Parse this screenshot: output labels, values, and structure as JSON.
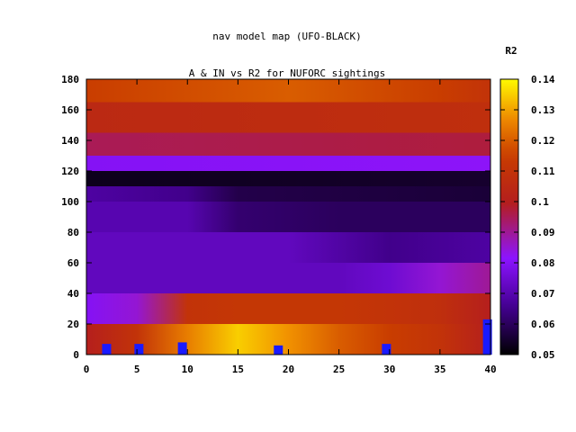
{
  "chart_data": {
    "type": "heatmap",
    "title_lines": [
      "nav model map (UFO-BLACK)",
      "A & IN vs R2 for NUFORC sightings"
    ],
    "colorbar_label": "R2",
    "xlim": [
      0,
      40
    ],
    "ylim": [
      0,
      180
    ],
    "x_ticks": [
      "0",
      "5",
      "10",
      "15",
      "20",
      "25",
      "30",
      "35",
      "40"
    ],
    "y_ticks": [
      "0",
      "20",
      "40",
      "60",
      "80",
      "100",
      "120",
      "140",
      "160",
      "180"
    ],
    "colorbar_range": [
      0.05,
      0.14
    ],
    "colorbar_ticks": [
      "0.05",
      "0.06",
      "0.07",
      "0.08",
      "0.09",
      "0.1",
      "0.11",
      "0.12",
      "0.13",
      "0.14"
    ],
    "colormap": "black-purple-red-orange-yellow (gnuplot)",
    "heatmap_bands": [
      {
        "y_from": 0,
        "y_to": 20,
        "x_profile": [
          [
            0,
            0.1
          ],
          [
            5,
            0.11
          ],
          [
            10,
            0.125
          ],
          [
            15,
            0.135
          ],
          [
            20,
            0.128
          ],
          [
            25,
            0.12
          ],
          [
            30,
            0.115
          ],
          [
            35,
            0.11
          ],
          [
            40,
            0.1
          ]
        ]
      },
      {
        "y_from": 20,
        "y_to": 40,
        "x_profile": [
          [
            0,
            0.08
          ],
          [
            5,
            0.085
          ],
          [
            10,
            0.11
          ],
          [
            15,
            0.112
          ],
          [
            20,
            0.112
          ],
          [
            25,
            0.112
          ],
          [
            30,
            0.11
          ],
          [
            35,
            0.108
          ],
          [
            40,
            0.1
          ]
        ]
      },
      {
        "y_from": 40,
        "y_to": 60,
        "x_profile": [
          [
            0,
            0.072
          ],
          [
            10,
            0.072
          ],
          [
            20,
            0.072
          ],
          [
            25,
            0.072
          ],
          [
            30,
            0.075
          ],
          [
            35,
            0.085
          ],
          [
            40,
            0.09
          ]
        ]
      },
      {
        "y_from": 60,
        "y_to": 80,
        "x_profile": [
          [
            0,
            0.072
          ],
          [
            10,
            0.072
          ],
          [
            20,
            0.072
          ],
          [
            30,
            0.065
          ],
          [
            40,
            0.068
          ]
        ]
      },
      {
        "y_from": 80,
        "y_to": 100,
        "x_profile": [
          [
            0,
            0.07
          ],
          [
            10,
            0.07
          ],
          [
            15,
            0.062
          ],
          [
            25,
            0.06
          ],
          [
            40,
            0.06
          ]
        ]
      },
      {
        "y_from": 100,
        "y_to": 110,
        "x_profile": [
          [
            0,
            0.068
          ],
          [
            10,
            0.065
          ],
          [
            15,
            0.058
          ],
          [
            40,
            0.056
          ]
        ]
      },
      {
        "y_from": 110,
        "y_to": 120,
        "x_profile": [
          [
            0,
            0.053
          ],
          [
            40,
            0.055
          ]
        ]
      },
      {
        "y_from": 120,
        "y_to": 130,
        "x_profile": [
          [
            0,
            0.08
          ],
          [
            40,
            0.082
          ]
        ]
      },
      {
        "y_from": 130,
        "y_to": 145,
        "x_profile": [
          [
            0,
            0.095
          ],
          [
            40,
            0.097
          ]
        ]
      },
      {
        "y_from": 145,
        "y_to": 165,
        "x_profile": [
          [
            0,
            0.105
          ],
          [
            40,
            0.108
          ]
        ]
      },
      {
        "y_from": 165,
        "y_to": 180,
        "x_profile": [
          [
            0,
            0.115
          ],
          [
            20,
            0.12
          ],
          [
            35,
            0.115
          ],
          [
            40,
            0.11
          ]
        ]
      }
    ],
    "markers": [
      {
        "x": 2,
        "y_from": 0,
        "y_to": 7
      },
      {
        "x": 5.2,
        "y_from": 0,
        "y_to": 7
      },
      {
        "x": 9.5,
        "y_from": 0,
        "y_to": 8
      },
      {
        "x": 19,
        "y_from": 0,
        "y_to": 6
      },
      {
        "x": 29.7,
        "y_from": 0,
        "y_to": 7
      },
      {
        "x": 39.7,
        "y_from": 0,
        "y_to": 23
      }
    ],
    "marker_color": "#1a1aff"
  }
}
